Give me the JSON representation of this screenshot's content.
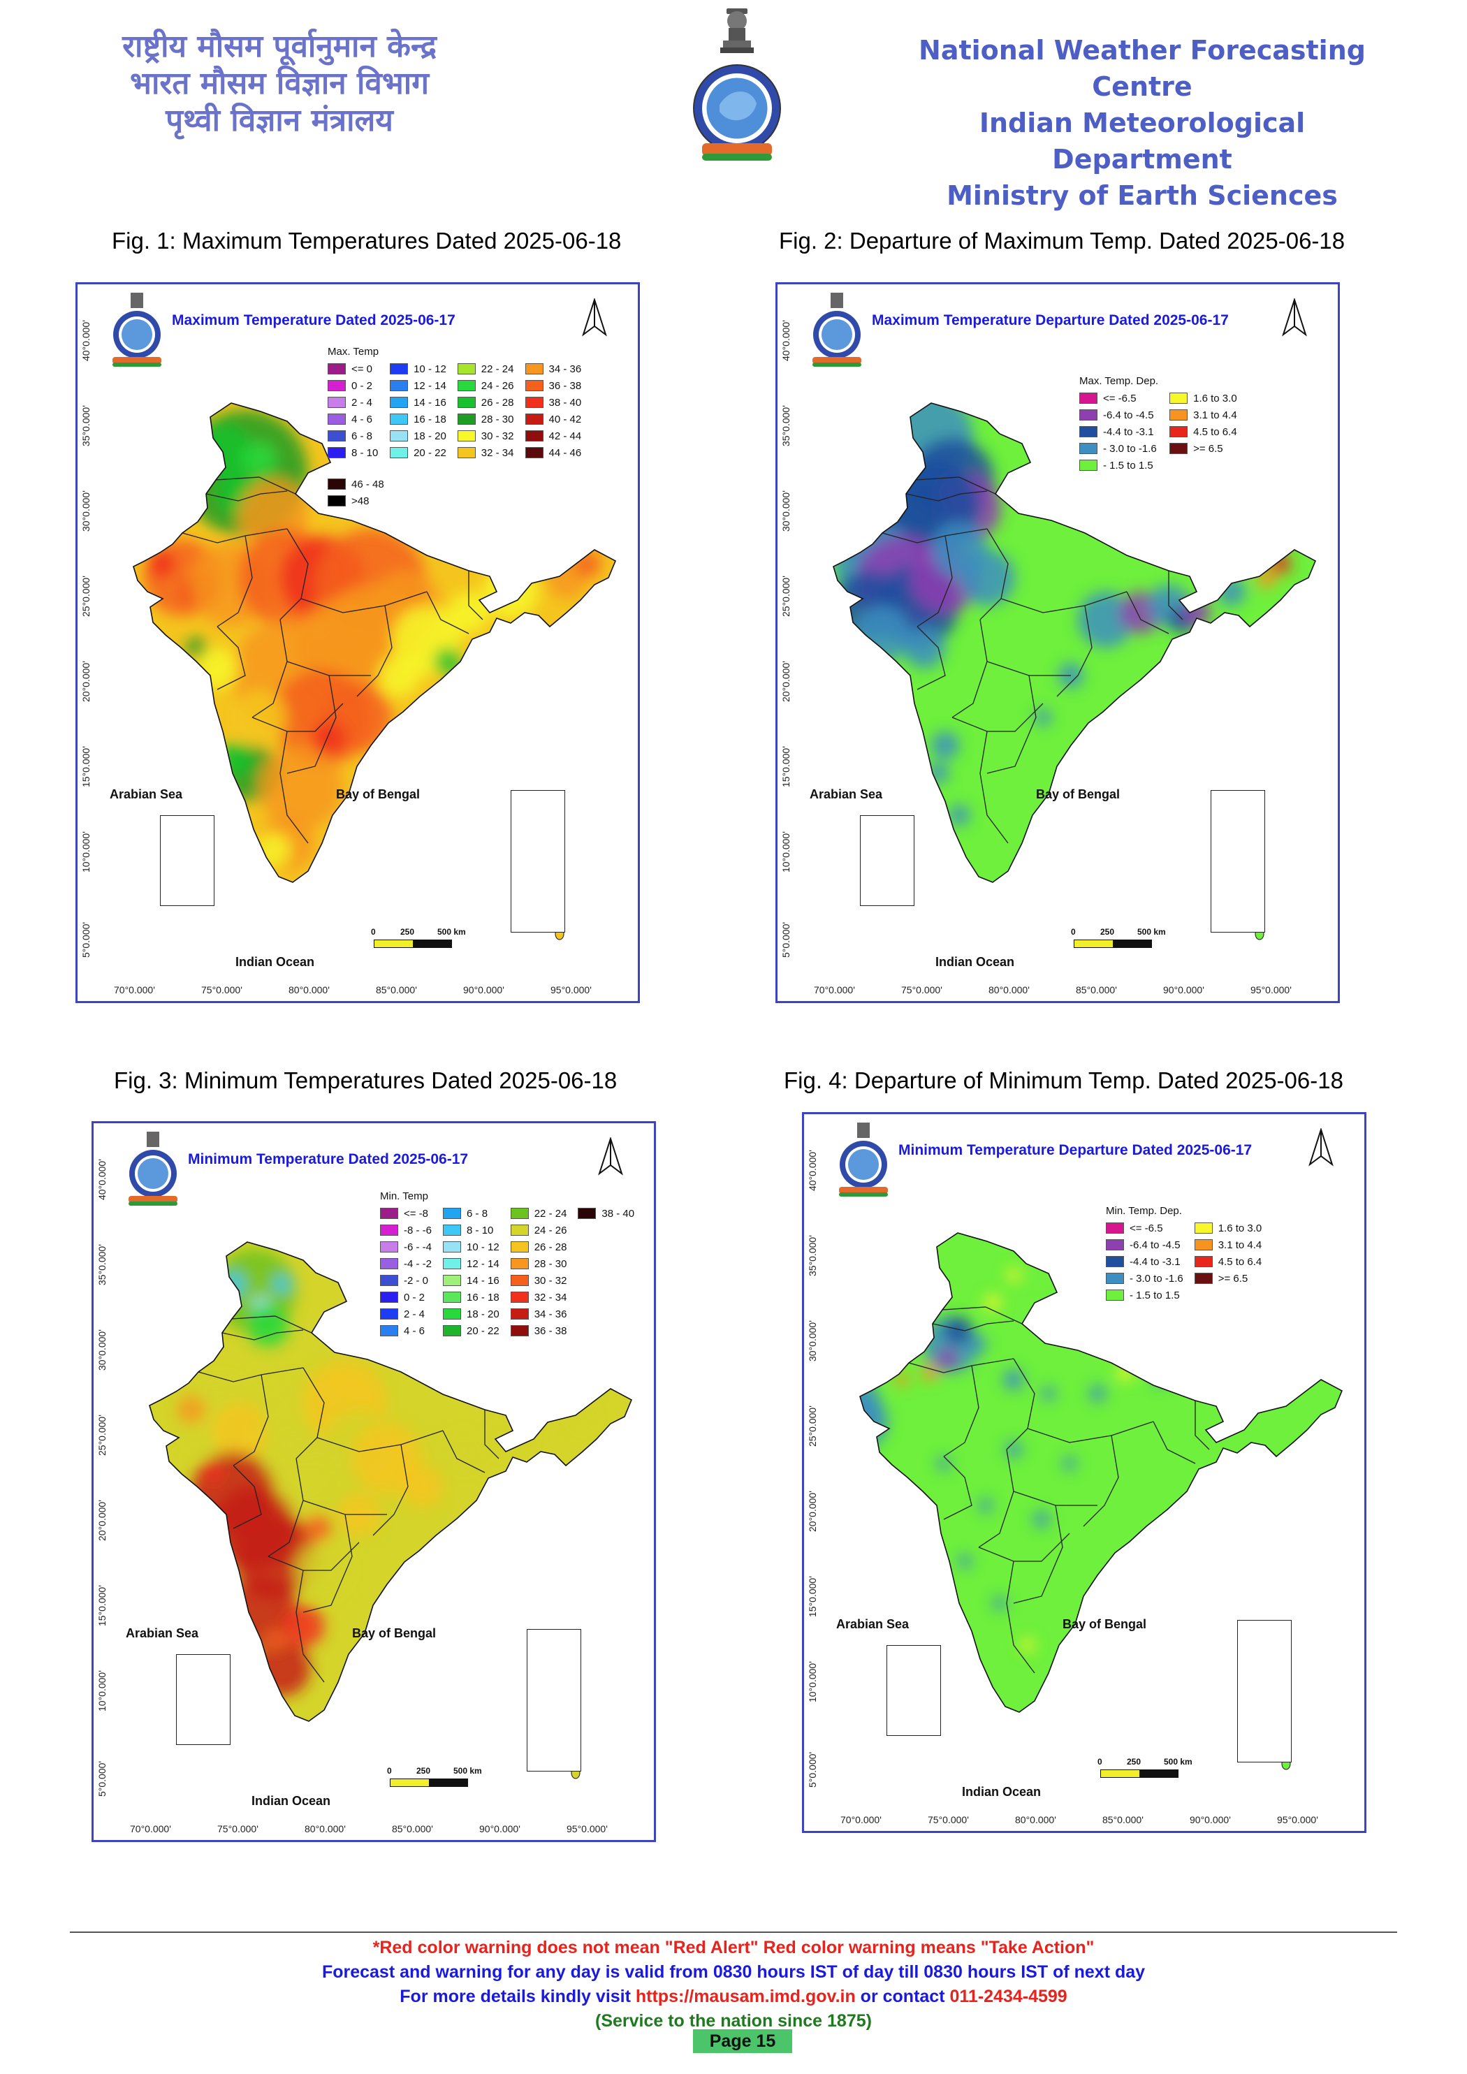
{
  "header": {
    "hindi_lines": [
      "राष्ट्रीय मौसम पूर्वानुमान केन्द्र",
      "भारत मौसम विज्ञान विभाग",
      "पृथ्वी विज्ञान मंत्रालय"
    ],
    "english_lines": [
      "National Weather Forecasting Centre",
      "Indian Meteorological Department",
      "Ministry of Earth Sciences"
    ]
  },
  "figures": [
    {
      "caption": "Fig. 1: Maximum Temperatures Dated 2025-06-18",
      "map_title": "Maximum Temperature Dated 2025-06-17",
      "legend_title": "Max. Temp",
      "legend_items": [
        {
          "label": "<= 0",
          "color": "#9c1c8a"
        },
        {
          "label": "0 - 2",
          "color": "#d61fd0"
        },
        {
          "label": "2 - 4",
          "color": "#c77ee8"
        },
        {
          "label": "4 - 6",
          "color": "#9a5fe0"
        },
        {
          "label": "6 - 8",
          "color": "#3c4ed2"
        },
        {
          "label": "8 - 10",
          "color": "#2a1ff0"
        },
        {
          "label": "10 - 12",
          "color": "#1f3cf5"
        },
        {
          "label": "12 - 14",
          "color": "#2a7ff0"
        },
        {
          "label": "14 - 16",
          "color": "#21a5f2"
        },
        {
          "label": "16 - 18",
          "color": "#3fc8f5"
        },
        {
          "label": "18 - 20",
          "color": "#98e2f5"
        },
        {
          "label": "20 - 22",
          "color": "#6ff0e8"
        },
        {
          "label": "22 - 24",
          "color": "#a6e52a"
        },
        {
          "label": "24 - 26",
          "color": "#27d93c"
        },
        {
          "label": "26 - 28",
          "color": "#17c22e"
        },
        {
          "label": "28 - 30",
          "color": "#1f9c24"
        },
        {
          "label": "30 - 32",
          "color": "#f7f72a"
        },
        {
          "label": "32 - 34",
          "color": "#f5c51f"
        },
        {
          "label": "34 - 36",
          "color": "#f7971f"
        },
        {
          "label": "36 - 38",
          "color": "#f5601c"
        },
        {
          "label": "38 - 40",
          "color": "#f0301c"
        },
        {
          "label": "40 - 42",
          "color": "#c61c14"
        },
        {
          "label": "42 - 44",
          "color": "#8f0d0d"
        },
        {
          "label": "44 - 46",
          "color": "#5a0a0a"
        },
        {
          "label": "46 - 48",
          "color": "#2a0505"
        },
        {
          "label": ">48",
          "color": "#000000"
        }
      ]
    },
    {
      "caption": "Fig. 2: Departure of Maximum Temp. Dated 2025-06-18",
      "map_title": "Maximum Temperature Departure Dated 2025-06-17",
      "legend_title": "Max. Temp. Dep.",
      "legend_items": [
        {
          "label": "<= -6.5",
          "color": "#d6158f"
        },
        {
          "label": "-6.4 to -4.5",
          "color": "#8e3fb0"
        },
        {
          "label": "-4.4 to -3.1",
          "color": "#1f4f9e"
        },
        {
          "label": "- 3.0 to -1.6",
          "color": "#3c8fc0"
        },
        {
          "label": "- 1.5 to 1.5",
          "color": "#6ef03c"
        },
        {
          "label": "1.6 to  3.0",
          "color": "#f7f72a"
        },
        {
          "label": "3.1 to 4.4",
          "color": "#f7941f"
        },
        {
          "label": "4.5 to 6.4",
          "color": "#e8261c"
        },
        {
          "label": ">= 6.5",
          "color": "#6b1010"
        }
      ]
    },
    {
      "caption": "Fig. 3: Minimum Temperatures Dated 2025-06-18",
      "map_title": "Minimum Temperature Dated 2025-06-17",
      "legend_title": "Min. Temp",
      "legend_items": [
        {
          "label": "<= -8",
          "color": "#9c1c8a"
        },
        {
          "label": "-8 - -6",
          "color": "#d61fd0"
        },
        {
          "label": "-6 - -4",
          "color": "#c77ee8"
        },
        {
          "label": "-4 - -2",
          "color": "#9a5fe0"
        },
        {
          "label": "-2 - 0",
          "color": "#3c4ed2"
        },
        {
          "label": "0 - 2",
          "color": "#2a1ff0"
        },
        {
          "label": "2 - 4",
          "color": "#1f3cf5"
        },
        {
          "label": "4 - 6",
          "color": "#2a7ff0"
        },
        {
          "label": "6 - 8",
          "color": "#21a5f2"
        },
        {
          "label": "8 - 10",
          "color": "#3fc8f5"
        },
        {
          "label": "10 - 12",
          "color": "#98e2f5"
        },
        {
          "label": "12 - 14",
          "color": "#6ff0e8"
        },
        {
          "label": "14 - 16",
          "color": "#9ef07a"
        },
        {
          "label": "16 - 18",
          "color": "#5ce65c"
        },
        {
          "label": "18 - 20",
          "color": "#27d93c"
        },
        {
          "label": "20 - 22",
          "color": "#1fb42e"
        },
        {
          "label": "22 - 24",
          "color": "#6cc21f"
        },
        {
          "label": "24 - 26",
          "color": "#d4d42a"
        },
        {
          "label": "26 - 28",
          "color": "#f5c51f"
        },
        {
          "label": "28 - 30",
          "color": "#f7971f"
        },
        {
          "label": "30 - 32",
          "color": "#f5601c"
        },
        {
          "label": "32 - 34",
          "color": "#f0301c"
        },
        {
          "label": "34 - 36",
          "color": "#c61c14"
        },
        {
          "label": "36 - 38",
          "color": "#8f0d0d"
        },
        {
          "label": "38 - 40",
          "color": "#2a0505"
        }
      ]
    },
    {
      "caption": "Fig. 4: Departure of Minimum Temp. Dated 2025-06-18",
      "map_title": "Minimum Temperature Departure Dated 2025-06-17",
      "legend_title": "Min. Temp. Dep.",
      "legend_items": [
        {
          "label": "<= -6.5",
          "color": "#d6158f"
        },
        {
          "label": "-6.4 to -4.5",
          "color": "#8e3fb0"
        },
        {
          "label": "-4.4 to -3.1",
          "color": "#1f4f9e"
        },
        {
          "label": "- 3.0 to -1.6",
          "color": "#3c8fc0"
        },
        {
          "label": "- 1.5 to 1.5",
          "color": "#6ef03c"
        },
        {
          "label": "1.6 to  3.0",
          "color": "#f7f72a"
        },
        {
          "label": "3.1 to 4.4",
          "color": "#f7941f"
        },
        {
          "label": "4.5 to 6.4",
          "color": "#e8261c"
        },
        {
          "label": ">= 6.5",
          "color": "#6b1010"
        }
      ]
    }
  ],
  "map_common": {
    "lat_labels": [
      "40°0.000'",
      "35°0.000'",
      "30°0.000'",
      "25°0.000'",
      "20°0.000'",
      "15°0.000'",
      "10°0.000'",
      "5°0.000'"
    ],
    "lon_labels": [
      "70°0.000'",
      "75°0.000'",
      "80°0.000'",
      "85°0.000'",
      "90°0.000'",
      "95°0.000'"
    ],
    "sea_labels": {
      "arabian": "Arabian Sea",
      "bengal": "Bay of Bengal",
      "indian": "Indian Ocean"
    },
    "scale_labels": [
      "0",
      "250",
      "500 km"
    ]
  },
  "footer": {
    "line1": "*Red color warning does not mean \"Red Alert\" Red color warning means \"Take Action\"",
    "line2": "Forecast and warning for any day is valid from 0830 hours IST of day till 0830 hours IST of next day",
    "line3_prefix": "For more details kindly visit ",
    "line3_url": "https://mausam.imd.gov.in",
    "line3_mid": " or contact ",
    "line3_phone": "011-2434-4599",
    "line4": "(Service to the nation since 1875)",
    "page": "Page 15"
  },
  "colors": {
    "hindi_header": "#6a73c9",
    "english_header": "#4d5ec4",
    "map_border": "#3b44c7",
    "map_title": "#1a1adf",
    "footer_red": "#e8221c",
    "footer_blue": "#1a1adf",
    "footer_green": "#1f7a1f",
    "page_badge": "#4cc46a"
  }
}
